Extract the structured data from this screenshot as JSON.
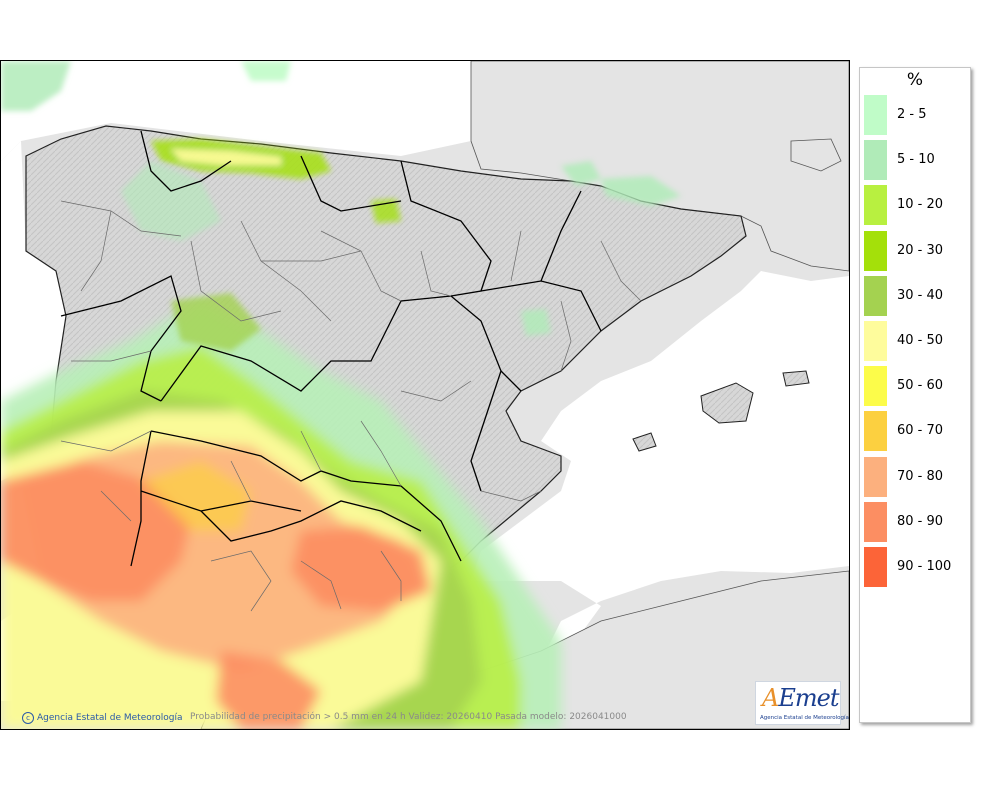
{
  "map": {
    "caption": "Probabilidad de precipitación > 0.5 mm en 24 h Validez: 20260410 Pasada modelo: 2026041000",
    "credit": "Agencia Estatal de Meteorología",
    "credit_icon": "copyright-icon",
    "land_color": "#dcdcdc",
    "outside_color": "#e4e4e4",
    "sea_color": "#ffffff"
  },
  "logo": {
    "text_a": "A",
    "text_rest": "Emet",
    "subtitle": "Agencia Estatal de Meteorología"
  },
  "legend": {
    "title": "%",
    "items": [
      {
        "label": "2 - 5",
        "color": "#c0fcc8"
      },
      {
        "label": "5 - 10",
        "color": "#b0ebb8"
      },
      {
        "label": "10 - 20",
        "color": "#b8f040"
      },
      {
        "label": "20 - 30",
        "color": "#a4e00a"
      },
      {
        "label": "30 - 40",
        "color": "#a4d250"
      },
      {
        "label": "40 - 50",
        "color": "#fefc9c"
      },
      {
        "label": "50 - 60",
        "color": "#fcfc4a"
      },
      {
        "label": "60 - 70",
        "color": "#fcd040"
      },
      {
        "label": "70 - 80",
        "color": "#fcb07e"
      },
      {
        "label": "80 - 90",
        "color": "#fc8e62"
      },
      {
        "label": "90 - 100",
        "color": "#fc6438"
      }
    ]
  }
}
